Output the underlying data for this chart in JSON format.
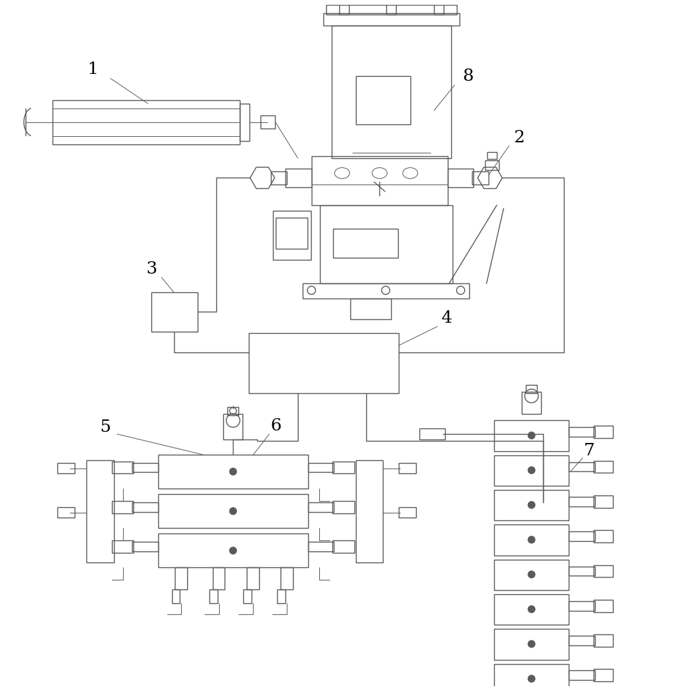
{
  "bg_color": "#ffffff",
  "line_color": "#5a5a5a",
  "line_width": 1.0,
  "thin_lw": 0.7,
  "label_fontsize": 18,
  "label_color": "#000000",
  "figsize": [
    10,
    10
  ],
  "dpi": 100
}
